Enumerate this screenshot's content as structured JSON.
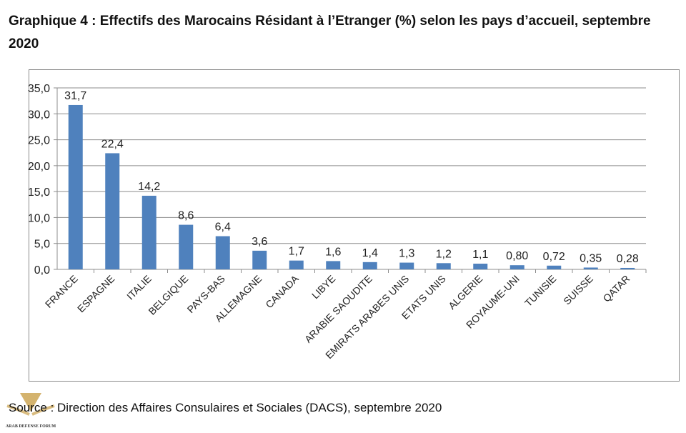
{
  "title": {
    "prefix": "Graphique 4",
    "text": " : Effectifs des Marocains Résidant à l’Etranger (%) selon les pays d’accueil, septembre 2020"
  },
  "source": "Source : Direction des Affaires Consulaires et Sociales (DACS), septembre 2020",
  "watermark": "ARAB DEFENSE FORUM",
  "chart_data": {
    "type": "bar",
    "categories": [
      "FRANCE",
      "ESPAGNE",
      "ITALIE",
      "BELGIQUE",
      "PAYS-BAS",
      "ALLEMAGNE",
      "CANADA",
      "LIBYE",
      "ARABIE SAOUDITE",
      "EMIRATS ARABES UNIS",
      "ETATS UNIS",
      "ALGERIE",
      "ROYAUME-UNI",
      "TUNISIE",
      "SUISSE",
      "QATAR"
    ],
    "values": [
      31.7,
      22.4,
      14.2,
      8.6,
      6.4,
      3.6,
      1.7,
      1.6,
      1.4,
      1.3,
      1.2,
      1.1,
      0.8,
      0.72,
      0.35,
      0.28
    ],
    "data_labels": [
      "31,7",
      "22,4",
      "14,2",
      "8,6",
      "6,4",
      "3,6",
      "1,7",
      "1,6",
      "1,4",
      "1,3",
      "1,2",
      "1,1",
      "0,80",
      "0,72",
      "0,35",
      "0,28"
    ],
    "yticks": [
      "0,0",
      "5,0",
      "10,0",
      "15,0",
      "20,0",
      "25,0",
      "30,0",
      "35,0"
    ],
    "ylim": [
      0,
      35
    ],
    "grid": true,
    "bar_color": "#4f81bd"
  }
}
